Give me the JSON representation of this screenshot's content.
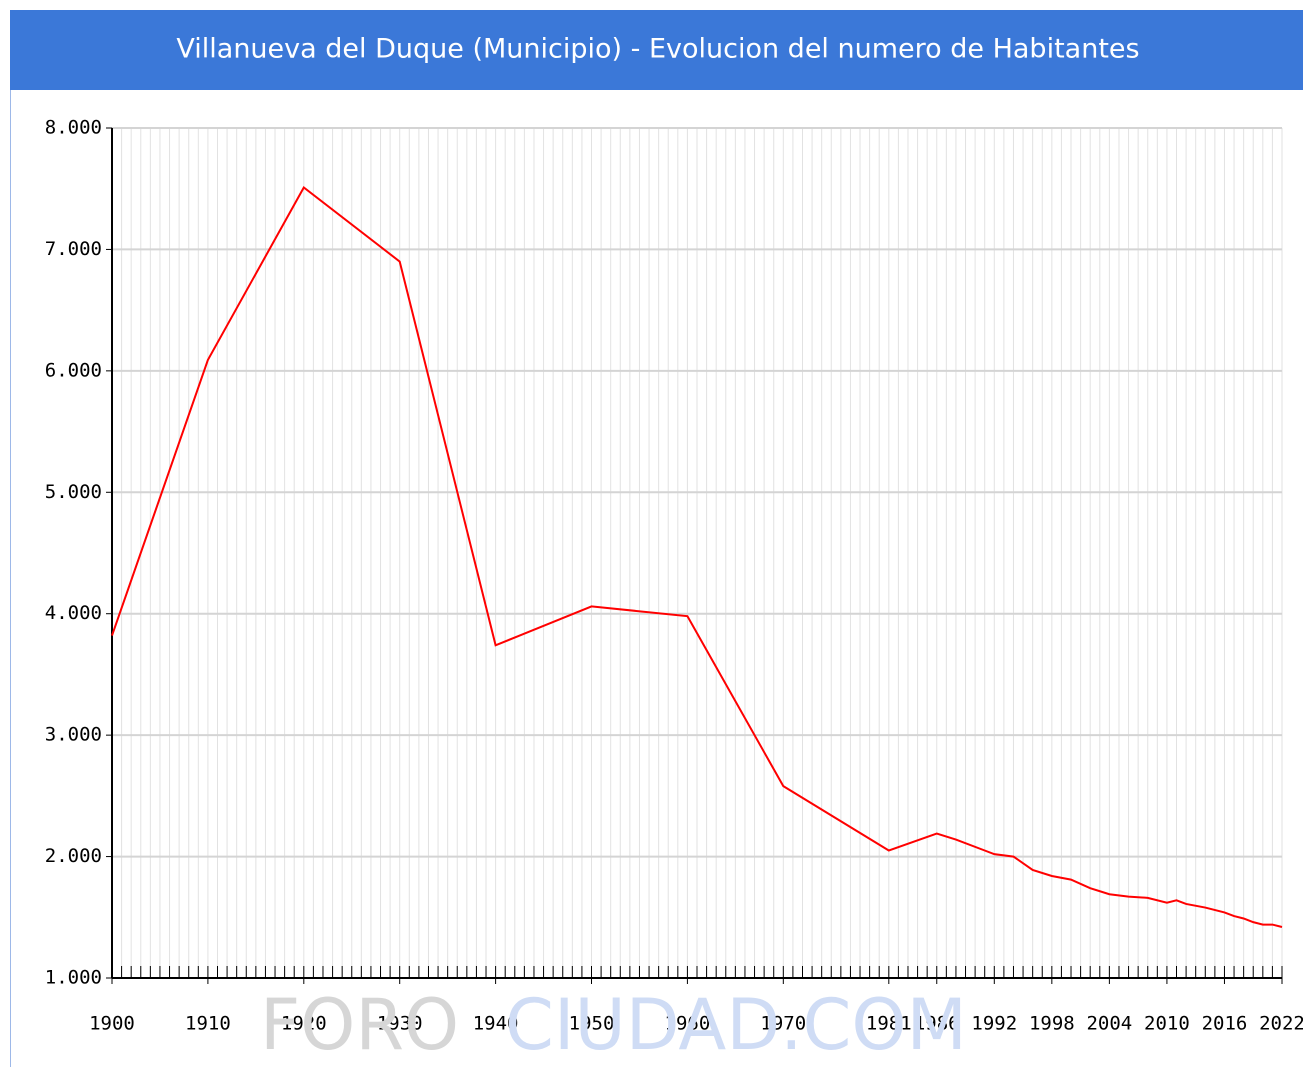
{
  "chart_data": {
    "type": "line",
    "title": "Villanueva del Duque (Municipio) - Evolucion del numero de Habitantes",
    "watermark": [
      "FORO",
      "CIUDAD.COM"
    ],
    "x": [
      1900,
      1910,
      1920,
      1930,
      1940,
      1950,
      1960,
      1970,
      1981,
      1986,
      1988,
      1991,
      1992,
      1994,
      1996,
      1998,
      2000,
      2002,
      2004,
      2006,
      2008,
      2010,
      2011,
      2012,
      2014,
      2016,
      2017,
      2018,
      2019,
      2020,
      2021,
      2022
    ],
    "series": [
      {
        "name": "Habitantes",
        "color": "#ff0000",
        "values": [
          3820,
          6090,
          7510,
          6900,
          3740,
          4060,
          3980,
          2580,
          2050,
          2190,
          2140,
          2050,
          2020,
          2000,
          1890,
          1840,
          1810,
          1740,
          1690,
          1670,
          1660,
          1620,
          1640,
          1610,
          1580,
          1540,
          1510,
          1490,
          1460,
          1440,
          1440,
          1420
        ]
      }
    ],
    "xlim": [
      1900,
      2022
    ],
    "xticks": [
      1900,
      1910,
      1920,
      1930,
      1940,
      1950,
      1960,
      1970,
      1981,
      1986,
      1992,
      1998,
      2004,
      2010,
      2016,
      2022
    ],
    "ylim": [
      1000,
      8000
    ],
    "yticks": [
      {
        "value": 1000,
        "label": "1.000"
      },
      {
        "value": 2000,
        "label": "2.000"
      },
      {
        "value": 3000,
        "label": "3.000"
      },
      {
        "value": 4000,
        "label": "4.000"
      },
      {
        "value": 5000,
        "label": "5.000"
      },
      {
        "value": 6000,
        "label": "6.000"
      },
      {
        "value": 7000,
        "label": "7.000"
      },
      {
        "value": 8000,
        "label": "8.000"
      }
    ],
    "grid": true
  }
}
